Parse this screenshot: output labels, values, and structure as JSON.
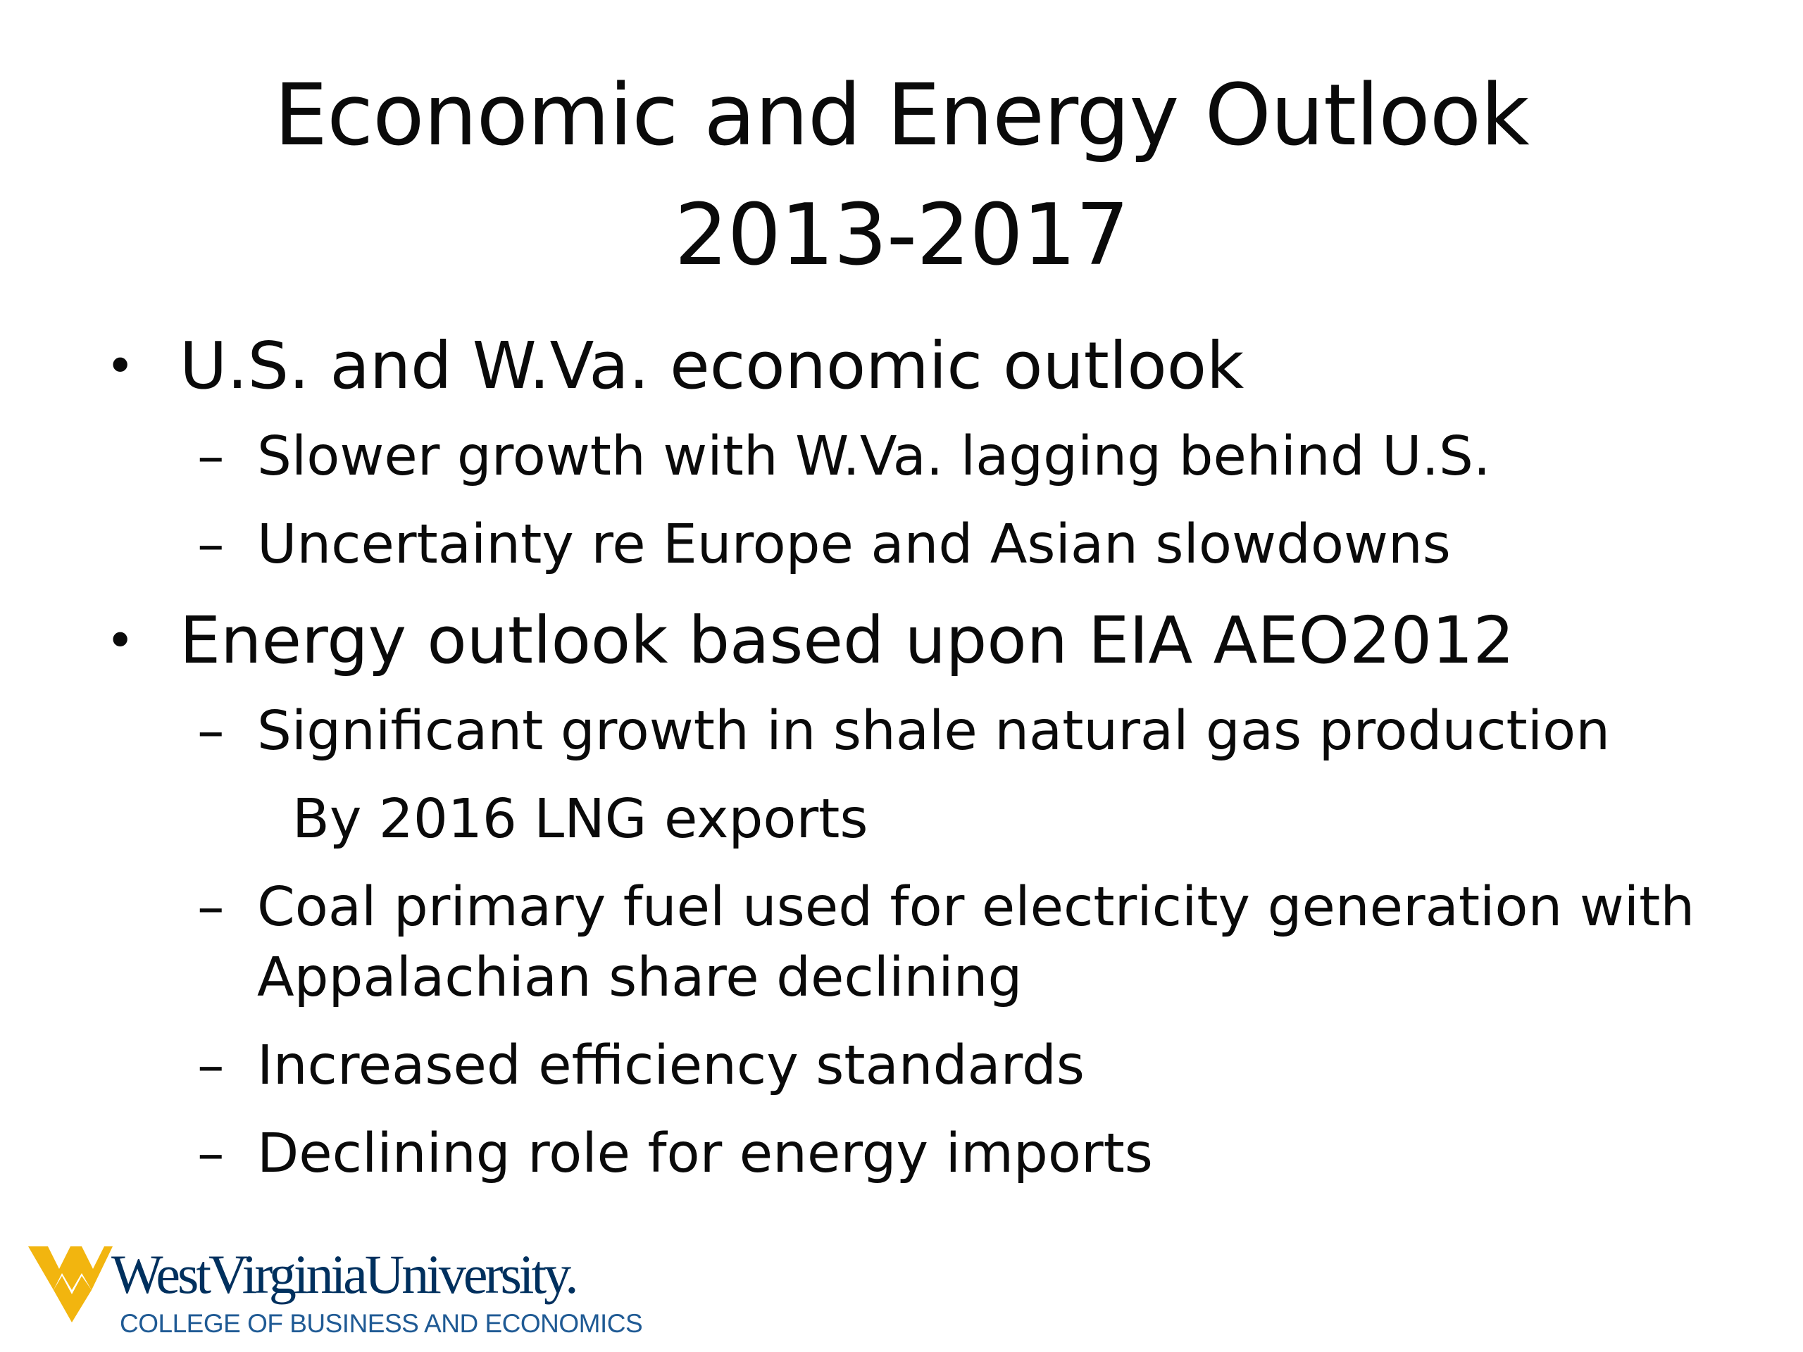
{
  "slide": {
    "title_line1": "Economic and Energy Outlook",
    "title_line2": "2013-2017",
    "bullets": [
      {
        "text": "U.S. and W.Va. economic outlook",
        "subs": [
          "Slower growth with W.Va. lagging behind U.S.",
          "Uncertainty re Europe and Asian slowdowns"
        ]
      },
      {
        "text": "Energy outlook based upon EIA AEO2012",
        "subs": [
          "Significant growth in shale natural gas production",
          "By 2016 LNG exports",
          "Coal primary fuel used for electricity generation with",
          "Appalachian share declining",
          "Increased efficiency standards",
          "Declining role for energy imports"
        ]
      }
    ],
    "bullet_symbol": "•",
    "dash_symbol": "–"
  },
  "logo": {
    "wordmark": "WestVirginiaUniversity.",
    "college": "COLLEGE OF BUSINESS AND ECONOMICS",
    "gold": "#f2b50f",
    "navy": "#00305e",
    "icon": "flying-wv-icon"
  }
}
